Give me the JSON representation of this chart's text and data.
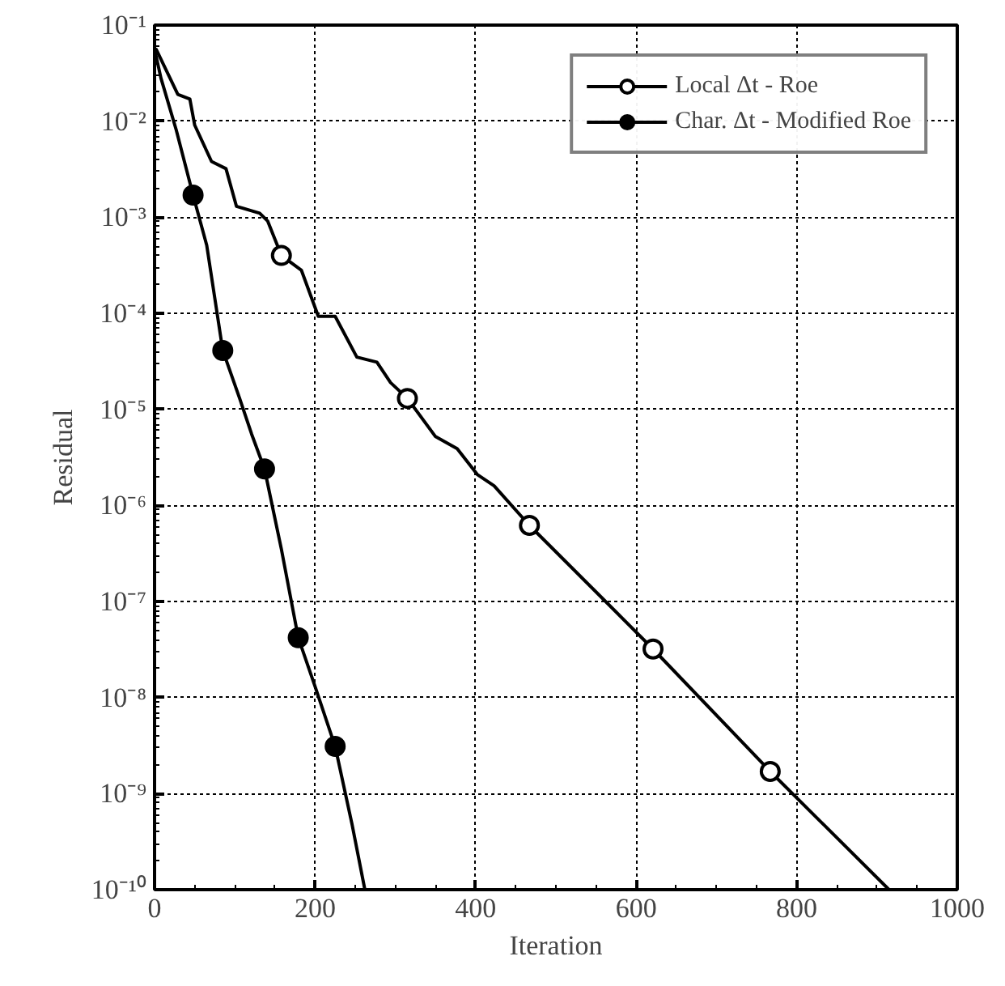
{
  "chart_data": {
    "type": "line",
    "xlabel": "Iteration",
    "ylabel": "Residual",
    "log": "y",
    "grid": true,
    "legend": "top right",
    "xlim": [
      0,
      1000
    ],
    "xticks": [
      0,
      200,
      400,
      600,
      800,
      1000
    ],
    "ylim": [
      1e-10,
      0.1
    ],
    "yticks": [
      {
        "value": 1e-10,
        "label": "10⁻¹⁰"
      },
      {
        "value": 1e-09,
        "label": "10⁻⁹"
      },
      {
        "value": 1e-08,
        "label": "10⁻⁸"
      },
      {
        "value": 1e-07,
        "label": "10⁻⁷"
      },
      {
        "value": 1e-06,
        "label": "10⁻⁶"
      },
      {
        "value": 1e-05,
        "label": "10⁻⁵"
      },
      {
        "value": 0.0001,
        "label": "10⁻⁴"
      },
      {
        "value": 0.001,
        "label": "10⁻³"
      },
      {
        "value": 0.01,
        "label": "10⁻²"
      },
      {
        "value": 0.1,
        "label": "10⁻¹"
      }
    ],
    "series": [
      {
        "name": "Local Δt - Roe",
        "color": "#000000",
        "x": [
          0,
          2,
          29,
          44,
          50,
          71,
          89,
          102,
          131,
          141,
          158,
          183,
          204,
          225,
          252,
          277,
          294,
          315,
          350,
          377,
          402,
          423,
          467,
          621,
          767,
          915
        ],
        "values": [
          0.056,
          0.056,
          0.019,
          0.017,
          0.0091,
          0.0038,
          0.0032,
          0.0013,
          0.0011,
          0.00091,
          0.0004,
          0.00028,
          9.3e-05,
          9.3e-05,
          3.5e-05,
          3.1e-05,
          1.9e-05,
          1.3e-05,
          5.2e-06,
          3.9e-06,
          2.1e-06,
          1.6e-06,
          6.2e-07,
          3.2e-08,
          1.7e-09,
          1e-10
        ]
      },
      {
        "type": "scatter",
        "marker": "circle",
        "color": "#ffffff",
        "x": [
          158,
          315,
          467,
          621,
          767
        ],
        "values": [
          0.0004,
          1.3e-05,
          6.2e-07,
          3.2e-08,
          1.7e-09
        ]
      },
      {
        "name": "Char. Δt - Modified Roe",
        "color": "#000000",
        "x": [
          0,
          8,
          27,
          48,
          65,
          85,
          106,
          121,
          137,
          158,
          179,
          200,
          225,
          246,
          262
        ],
        "values": [
          0.056,
          0.028,
          0.0081,
          0.0017,
          0.00051,
          4.1e-05,
          1.3e-05,
          5.5e-06,
          2.4e-06,
          3.5e-07,
          4.2e-08,
          1.3e-08,
          3.1e-09,
          4.8e-10,
          1e-10
        ]
      },
      {
        "type": "scatter",
        "marker": "circle",
        "color": "#000000",
        "x": [
          48,
          85,
          137,
          179,
          225
        ],
        "values": [
          0.0017,
          4.1e-05,
          2.4e-06,
          4.2e-08,
          3.1e-09
        ]
      }
    ]
  }
}
